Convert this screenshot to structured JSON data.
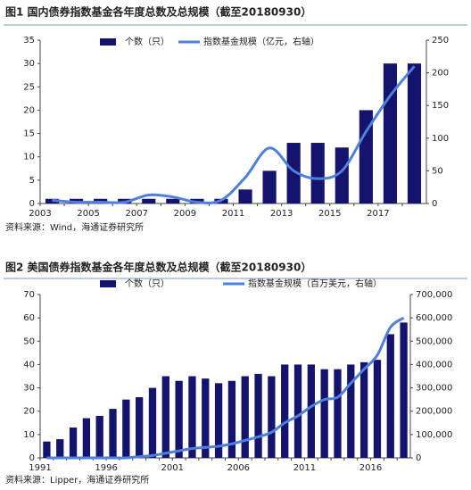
{
  "chart_data": [
    {
      "type": "bar",
      "title": "图1  国内债券指数基金各年度总数及总规模（截至20180930）",
      "source": "资料来源：Wind，海通证券研究所",
      "categories": [
        "2003",
        null,
        "2005",
        null,
        "2007",
        null,
        "2009",
        null,
        "2011",
        null,
        "2013",
        null,
        "2015",
        null,
        "2017",
        null
      ],
      "series": [
        {
          "name": "个数（只）",
          "type": "bar",
          "color": "#14146e",
          "values": [
            1,
            1,
            1,
            1,
            1,
            1,
            1,
            1,
            3,
            7,
            13,
            13,
            12,
            20,
            30,
            30
          ]
        },
        {
          "name": "指数基金规模（亿元，右轴）",
          "type": "line",
          "axis": "y2",
          "color": "#4f7fdc",
          "values": [
            5,
            2,
            2,
            2,
            13,
            10,
            2,
            5,
            40,
            85,
            50,
            38,
            50,
            110,
            165,
            210
          ]
        }
      ],
      "ylim": [
        0,
        35
      ],
      "yticks": [
        0,
        5,
        10,
        15,
        20,
        25,
        30,
        35
      ],
      "y2lim": [
        0,
        250
      ],
      "y2ticks": [
        0,
        50,
        100,
        150,
        200,
        250
      ]
    },
    {
      "type": "bar",
      "title": "图2  美国债券指数基金各年度总数及总规模（截至20180930）",
      "source": "资料来源：Lipper，海通证券研究所",
      "categories": [
        "1991",
        null,
        null,
        null,
        null,
        "1996",
        null,
        null,
        null,
        null,
        "2001",
        null,
        null,
        null,
        null,
        "2006",
        null,
        null,
        null,
        null,
        "2011",
        null,
        null,
        null,
        null,
        "2016",
        null,
        null
      ],
      "series": [
        {
          "name": "个数（只）",
          "type": "bar",
          "color": "#14146e",
          "values": [
            7,
            8,
            13,
            17,
            18,
            21,
            25,
            26,
            30,
            35,
            33,
            35,
            34,
            32,
            33,
            35,
            36,
            35,
            40,
            40,
            40,
            38,
            38,
            40,
            41,
            42,
            53,
            58
          ]
        },
        {
          "name": "指数基金规模（百万美元，右轴）",
          "type": "line",
          "axis": "y2",
          "color": "#4f7fdc",
          "values": [
            0,
            0,
            0,
            0,
            0,
            0,
            0,
            5000,
            10000,
            20000,
            30000,
            40000,
            45000,
            50000,
            60000,
            75000,
            90000,
            110000,
            150000,
            180000,
            220000,
            250000,
            260000,
            320000,
            380000,
            440000,
            560000,
            600000
          ]
        }
      ],
      "ylim": [
        0,
        70
      ],
      "yticks": [
        0,
        10,
        20,
        30,
        40,
        50,
        60,
        70
      ],
      "y2lim": [
        0,
        700000
      ],
      "y2ticks": [
        0,
        {
          "value": 100000,
          "label": "100,000"
        },
        {
          "value": 200000,
          "label": "200,000"
        },
        {
          "value": 300000,
          "label": "300,000"
        },
        {
          "value": 400000,
          "label": "400,000"
        },
        {
          "value": 500000,
          "label": "500,000"
        },
        {
          "value": 600000,
          "label": "600,000"
        },
        {
          "value": 700000,
          "label": "700,000"
        }
      ]
    }
  ]
}
